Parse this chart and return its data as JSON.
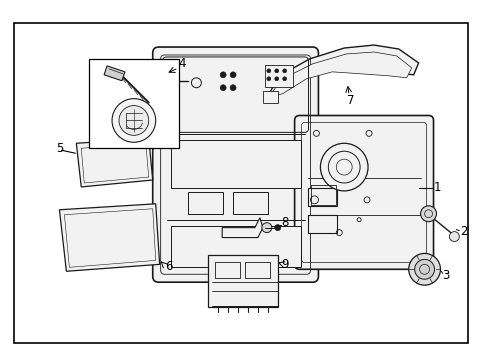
{
  "bg_color": "#ffffff",
  "border_color": "#000000",
  "line_color": "#1a1a1a",
  "fig_width": 4.9,
  "fig_height": 3.6,
  "dpi": 100
}
